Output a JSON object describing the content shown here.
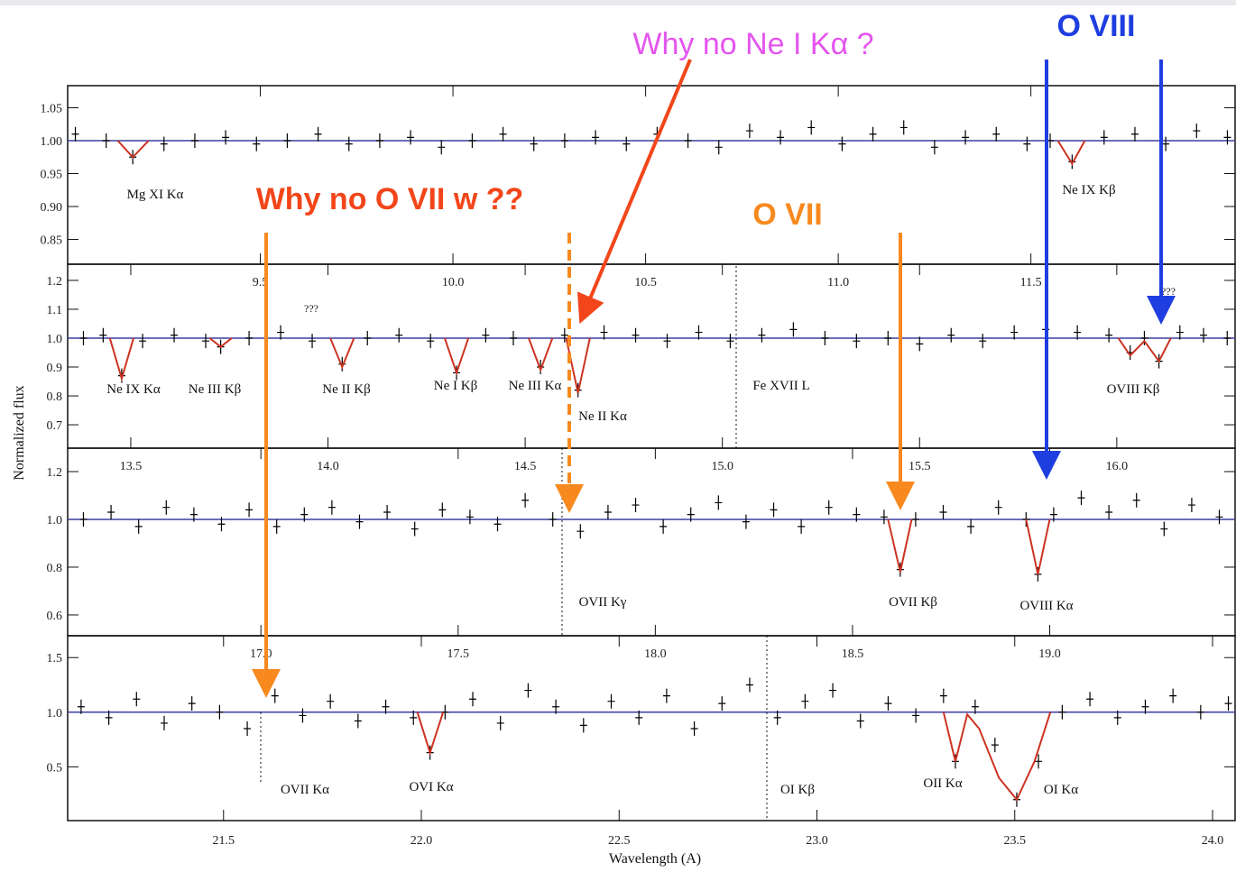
{
  "chart_data": [
    {
      "type": "scatter",
      "xlim": [
        9.0,
        12.03
      ],
      "ylim": [
        0.8123,
        1.0836
      ],
      "xticks": [
        9.5,
        {
          "value": 10,
          "label": "10.0"
        },
        10.5,
        {
          "value": 11,
          "label": "11.0"
        },
        11.5
      ],
      "yticks": [
        {
          "value": 0.85,
          "label": "0.85"
        },
        {
          "value": 0.9,
          "label": "0.90"
        },
        {
          "value": 0.95,
          "label": "0.95"
        },
        {
          "value": 1,
          "label": "1.00"
        },
        {
          "value": 1.05,
          "label": "1.05"
        }
      ],
      "hline": 1,
      "hline_color": "#3a3fa0",
      "series": [
        {
          "color": "#000000",
          "x": [
            9.02,
            9.1,
            9.169,
            9.25,
            9.33,
            9.41,
            9.49,
            9.57,
            9.65,
            9.73,
            9.81,
            9.89,
            9.97,
            10.05,
            10.13,
            10.21,
            10.29,
            10.37,
            10.45,
            10.53,
            10.61,
            10.69,
            10.77,
            10.85,
            10.93,
            11.01,
            11.09,
            11.17,
            11.25,
            11.33,
            11.41,
            11.49,
            11.55,
            11.607,
            11.69,
            11.77,
            11.85,
            11.93,
            12.01
          ],
          "values": [
            1.01,
            1.0,
            0.975,
            0.995,
            1.0,
            1.005,
            0.995,
            1.0,
            1.01,
            0.995,
            1.0,
            1.005,
            0.99,
            1.0,
            1.01,
            0.995,
            1.0,
            1.005,
            0.995,
            1.01,
            1.0,
            0.99,
            1.015,
            1.005,
            1.02,
            0.995,
            1.01,
            1.02,
            0.99,
            1.005,
            1.01,
            0.995,
            1.0,
            0.968,
            1.005,
            1.01,
            0.995,
            1.015,
            1.005
          ]
        },
        {
          "color": "#cc3322",
          "x": [
            9.13,
            9.169,
            9.21,
            9.4,
            11.57,
            11.607,
            11.64
          ],
          "values": [
            1,
            0.975,
            1,
            null,
            1,
            0.965,
            1
          ]
        }
      ],
      "labels": [
        "Mg XI Kα",
        "Ne IX Kβ"
      ]
    },
    {
      "type": "scatter",
      "xlim": [
        13.34,
        16.3
      ],
      "ylim": [
        0.619,
        1.256
      ],
      "xticks": [
        13.5,
        {
          "value": 14,
          "label": "14.0"
        },
        14.5,
        {
          "value": 15,
          "label": "15.0"
        },
        15.5,
        {
          "value": 16,
          "label": "16.0"
        }
      ],
      "yticks": [
        0.7,
        0.8,
        0.9,
        {
          "value": 1,
          "label": "1.0"
        },
        1.1,
        1.2
      ],
      "hline": 1,
      "hline_color": "#3a3fa0",
      "series": [
        {
          "color": "#000000",
          "x": [
            13.38,
            13.43,
            13.477,
            13.53,
            13.61,
            13.69,
            13.728,
            13.8,
            13.88,
            13.96,
            14.036,
            14.1,
            14.18,
            14.26,
            14.326,
            14.4,
            14.47,
            14.539,
            14.6,
            14.634,
            14.7,
            14.78,
            14.86,
            14.94,
            15.02,
            15.1,
            15.18,
            15.26,
            15.34,
            15.42,
            15.5,
            15.58,
            15.66,
            15.74,
            15.82,
            15.9,
            15.98,
            16.034,
            16.07,
            16.107,
            16.16,
            16.22,
            16.28
          ],
          "values": [
            1.0,
            1.01,
            0.87,
            0.99,
            1.01,
            0.99,
            0.97,
            1.0,
            1.02,
            0.99,
            0.91,
            1.0,
            1.01,
            0.99,
            0.88,
            1.01,
            1.0,
            0.9,
            1.01,
            0.82,
            1.02,
            1.01,
            0.99,
            1.02,
            0.99,
            1.01,
            1.03,
            1.0,
            0.99,
            1.0,
            0.98,
            1.01,
            0.99,
            1.02,
            1.03,
            1.02,
            1.01,
            0.95,
            1.0,
            0.92,
            1.02,
            1.01,
            1.0
          ]
        },
        {
          "color": "#cc3322",
          "x": [
            13.447,
            13.477,
            13.507,
            13.6,
            13.7,
            13.728,
            13.756,
            13.9,
            14.006,
            14.036,
            14.066,
            14.2,
            14.296,
            14.326,
            14.356,
            14.45,
            14.509,
            14.539,
            14.569,
            14.585,
            14.604,
            14.634,
            14.664,
            15.0,
            16.004,
            16.034,
            16.07,
            16.107,
            16.137
          ],
          "values": [
            1,
            0.86,
            1,
            null,
            1,
            0.97,
            1,
            null,
            1,
            0.9,
            1,
            null,
            1,
            0.88,
            1,
            null,
            1,
            0.89,
            1,
            null,
            1,
            0.81,
            1,
            null,
            1,
            0.94,
            0.99,
            0.92,
            1
          ]
        }
      ],
      "labels": [
        "Ne IX Kα",
        "Ne III Kβ",
        "Ne II Kβ",
        "Ne I Kβ",
        "Ne III Kα",
        "Ne II Kα",
        "Fe XVII L",
        "OVIII Kβ",
        "???",
        "???"
      ]
    },
    {
      "type": "scatter",
      "xlim": [
        16.51,
        19.47
      ],
      "ylim": [
        0.513,
        1.298
      ],
      "xticks": [
        {
          "value": 17,
          "label": "17.0"
        },
        17.5,
        {
          "value": 18,
          "label": "18.0"
        },
        18.5,
        {
          "value": 19,
          "label": "19.0"
        }
      ],
      "yticks": [
        0.6,
        0.8,
        {
          "value": 1,
          "label": "1.0"
        },
        1.2
      ],
      "hline": 1,
      "hline_color": "#3a3fa0",
      "series": [
        {
          "color": "#000000",
          "x": [
            16.55,
            16.62,
            16.69,
            16.76,
            16.83,
            16.9,
            16.97,
            17.04,
            17.11,
            17.18,
            17.25,
            17.32,
            17.39,
            17.46,
            17.53,
            17.6,
            17.67,
            17.74,
            17.81,
            17.88,
            17.95,
            18.02,
            18.09,
            18.16,
            18.23,
            18.3,
            18.37,
            18.44,
            18.51,
            18.58,
            18.621,
            18.66,
            18.73,
            18.8,
            18.87,
            18.94,
            18.97,
            19.01,
            19.08,
            19.15,
            19.22,
            19.29,
            19.36,
            19.43
          ],
          "values": [
            1.0,
            1.03,
            0.97,
            1.05,
            1.02,
            0.98,
            1.04,
            0.97,
            1.02,
            1.05,
            0.99,
            1.03,
            0.96,
            1.04,
            1.01,
            0.98,
            1.08,
            1.0,
            0.95,
            1.03,
            1.06,
            0.97,
            1.02,
            1.07,
            0.99,
            1.04,
            0.97,
            1.05,
            1.02,
            1.01,
            0.79,
            1.0,
            1.03,
            0.97,
            1.05,
            1.0,
            0.77,
            1.02,
            1.09,
            1.03,
            1.08,
            0.96,
            1.06,
            1.01
          ]
        },
        {
          "color": "#cc3322",
          "x": [
            18.59,
            18.621,
            18.65,
            18.8,
            18.94,
            18.97,
            19.0
          ],
          "values": [
            1,
            0.78,
            1,
            null,
            1,
            0.77,
            1
          ]
        }
      ],
      "labels": [
        "OVII Kγ",
        "OVII Kβ",
        "OVIII Kα"
      ]
    },
    {
      "type": "scatter",
      "xlim": [
        21.106,
        24.057
      ],
      "ylim": [
        0.008,
        1.7
      ],
      "xticks": [
        21.5,
        {
          "value": 22,
          "label": "22.0"
        },
        22.5,
        {
          "value": 23,
          "label": "23.0"
        },
        23.5,
        {
          "value": 24,
          "label": "24.0"
        }
      ],
      "yticks": [
        0.5,
        {
          "value": 1,
          "label": "1.0"
        },
        1.5
      ],
      "hline": 1,
      "hline_color": "#3a3fa0",
      "series": [
        {
          "color": "#000000",
          "x": [
            21.14,
            21.21,
            21.28,
            21.35,
            21.42,
            21.49,
            21.56,
            21.63,
            21.7,
            21.77,
            21.84,
            21.91,
            21.98,
            22.022,
            22.06,
            22.13,
            22.2,
            22.27,
            22.34,
            22.41,
            22.48,
            22.55,
            22.62,
            22.69,
            22.76,
            22.83,
            22.9,
            22.97,
            23.04,
            23.11,
            23.18,
            23.25,
            23.32,
            23.35,
            23.4,
            23.45,
            23.505,
            23.56,
            23.62,
            23.69,
            23.76,
            23.83,
            23.9,
            23.97,
            24.04
          ],
          "values": [
            1.05,
            0.95,
            1.12,
            0.9,
            1.08,
            1.0,
            0.85,
            1.15,
            0.97,
            1.1,
            0.92,
            1.05,
            0.95,
            0.63,
            1.0,
            1.12,
            0.9,
            1.2,
            1.05,
            0.88,
            1.1,
            0.95,
            1.15,
            0.85,
            1.08,
            1.25,
            0.95,
            1.1,
            1.2,
            0.92,
            1.08,
            0.97,
            1.15,
            0.55,
            1.05,
            0.7,
            0.2,
            0.55,
            1.0,
            1.12,
            0.95,
            1.05,
            1.15,
            1.0,
            1.08
          ]
        },
        {
          "color": "#cc3322",
          "x": [
            21.99,
            22.022,
            22.055,
            22.5,
            23.32,
            23.35,
            23.38,
            23.41,
            23.46,
            23.505,
            23.55,
            23.59
          ],
          "values": [
            1,
            0.63,
            1,
            null,
            1,
            0.55,
            0.98,
            0.85,
            0.4,
            0.2,
            0.55,
            1
          ]
        }
      ],
      "labels": [
        "OVII Kα",
        "OVI Kα",
        "OI Kβ",
        "OII Kα",
        "OI Kα"
      ]
    }
  ],
  "xlabel": "Wavelength (A)",
  "ylabel": "Normalized flux",
  "annotations": [
    {
      "text": "Why no Ne I Kα ?",
      "color": "#e455ee"
    },
    {
      "text": "O VIII",
      "color": "#1f3ee0"
    },
    {
      "text": "Why no O VII w ??",
      "color": "#f2461a"
    },
    {
      "text": "O VII",
      "color": "#f7891f"
    }
  ]
}
